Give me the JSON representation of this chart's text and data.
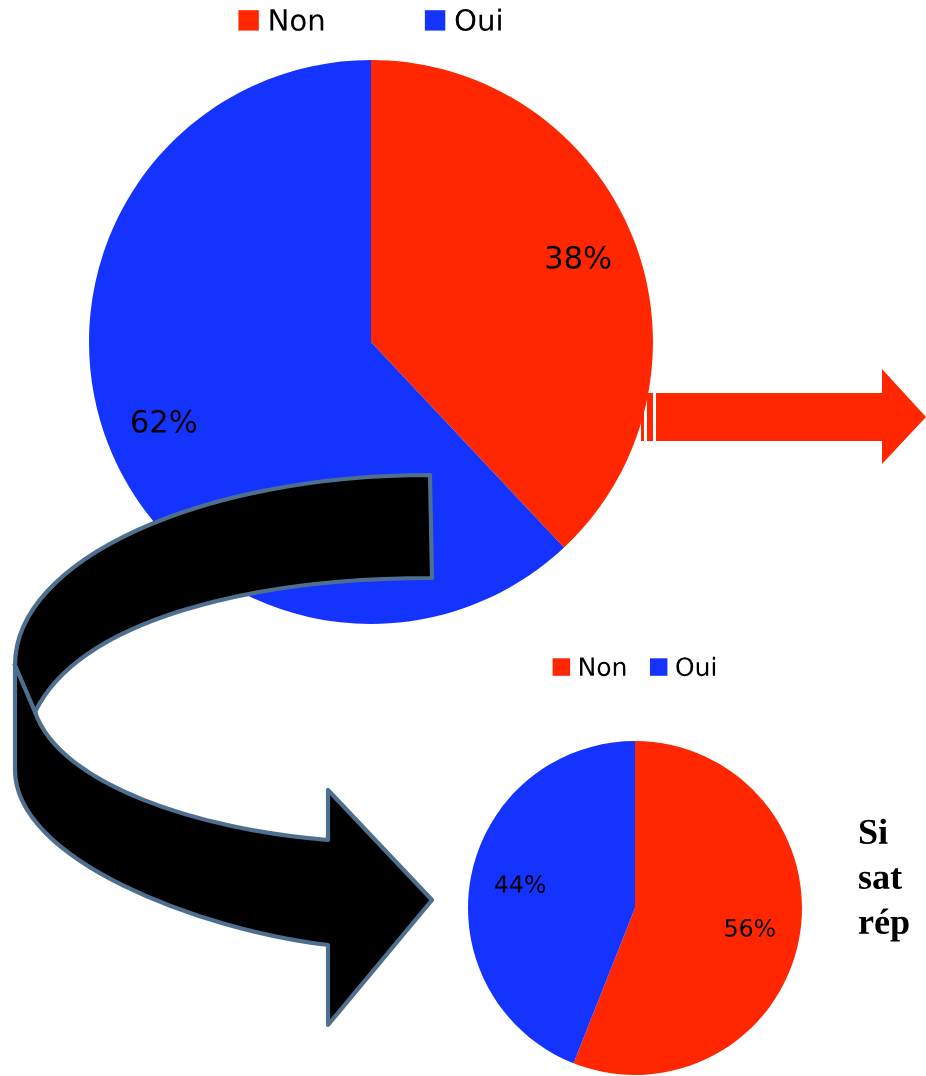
{
  "chart_data": [
    {
      "type": "pie",
      "categories": [
        "Non",
        "Oui"
      ],
      "values": [
        38,
        62
      ],
      "colors": [
        "#ff2600",
        "#1433ff"
      ],
      "value_labels": [
        "38%",
        "62%"
      ],
      "legend": "top"
    },
    {
      "type": "pie",
      "categories": [
        "Non",
        "Oui"
      ],
      "values": [
        56,
        44
      ],
      "colors": [
        "#ff2600",
        "#1433ff"
      ],
      "value_labels": [
        "56%",
        "44%"
      ],
      "legend": "top",
      "annotations": [
        "Si",
        "sat",
        "rép"
      ]
    }
  ]
}
